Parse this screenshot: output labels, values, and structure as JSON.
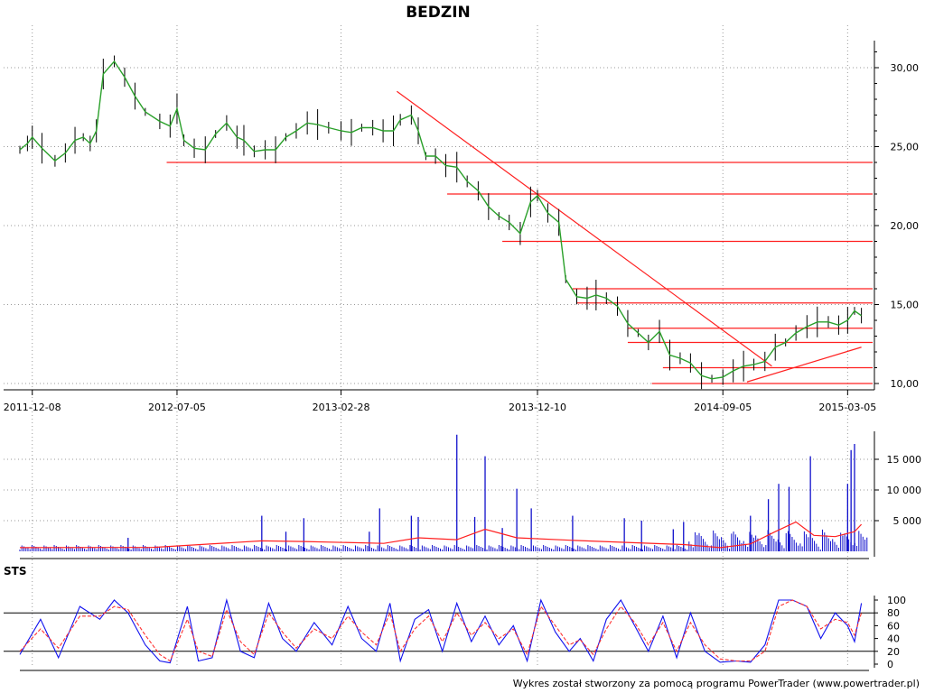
{
  "colors": {
    "background": "#ffffff",
    "price_line": "#2aa02a",
    "trend_line": "#ff2020",
    "support_line": "#ff2020",
    "volume_bar": "#1010cc",
    "volume_avg": "#ff2020",
    "sts_k": "#1010ee",
    "sts_d": "#ff3030",
    "axis": "#000000",
    "grid": "#9a9a9a"
  },
  "chart_data": [
    {
      "type": "line",
      "name": "price",
      "title": "BEDZIN",
      "x_tick_labels": [
        "2011-12-08",
        "2012-07-05",
        "2013-02-28",
        "2013-12-10",
        "2014-09-05",
        "2015-03-05"
      ],
      "y_tick_labels": [
        "10,00",
        "15,00",
        "20,00",
        "25,00",
        "30,00"
      ],
      "ylim": [
        10,
        32
      ],
      "xlim": [
        "2011-11-20",
        "2015-04-05"
      ],
      "grid": true,
      "series": [
        {
          "x": [
            "2011-11-20",
            "2011-12-01",
            "2011-12-08",
            "2011-12-22",
            "2012-01-10",
            "2012-01-25",
            "2012-02-08",
            "2012-02-20",
            "2012-03-01",
            "2012-03-10",
            "2012-03-20",
            "2012-04-05",
            "2012-04-20",
            "2012-05-05",
            "2012-05-20",
            "2012-06-10",
            "2012-06-25",
            "2012-07-05",
            "2012-07-15",
            "2012-07-30",
            "2012-08-15",
            "2012-08-30",
            "2012-09-15",
            "2012-09-30",
            "2012-10-10",
            "2012-10-25",
            "2012-11-10",
            "2012-11-25",
            "2012-12-10",
            "2012-12-25",
            "2013-01-10",
            "2013-01-25",
            "2013-02-10",
            "2013-02-28",
            "2013-03-15",
            "2013-03-30",
            "2013-04-15",
            "2013-04-30",
            "2013-05-15",
            "2013-05-25",
            "2013-06-10",
            "2013-06-20",
            "2013-07-01",
            "2013-07-15",
            "2013-07-30",
            "2013-08-15",
            "2013-08-30",
            "2013-09-15",
            "2013-09-30",
            "2013-10-15",
            "2013-10-30",
            "2013-11-15",
            "2013-11-30",
            "2013-12-10",
            "2013-12-25",
            "2014-01-10",
            "2014-01-20",
            "2014-02-05",
            "2014-02-20",
            "2014-03-05",
            "2014-03-20",
            "2014-04-05",
            "2014-04-20",
            "2014-05-05",
            "2014-05-20",
            "2014-06-05",
            "2014-06-20",
            "2014-07-05",
            "2014-07-20",
            "2014-08-05",
            "2014-08-20",
            "2014-09-05",
            "2014-09-20",
            "2014-10-05",
            "2014-10-20",
            "2014-11-05",
            "2014-11-20",
            "2014-12-05",
            "2014-12-20",
            "2015-01-05",
            "2015-01-20",
            "2015-02-05",
            "2015-02-20",
            "2015-03-05",
            "2015-03-15",
            "2015-03-25"
          ],
          "values": [
            24.8,
            25.2,
            25.6,
            24.9,
            24.1,
            24.6,
            25.4,
            25.6,
            25.2,
            26.0,
            29.6,
            30.4,
            29.4,
            28.2,
            27.2,
            26.6,
            26.3,
            27.4,
            25.4,
            24.9,
            24.8,
            25.8,
            26.5,
            25.6,
            25.4,
            24.7,
            24.8,
            24.8,
            25.6,
            26.0,
            26.5,
            26.4,
            26.2,
            26.0,
            25.9,
            26.2,
            26.2,
            26.0,
            26.0,
            26.7,
            27.0,
            26.0,
            24.4,
            24.4,
            23.8,
            23.7,
            22.8,
            22.2,
            21.2,
            20.6,
            20.2,
            19.5,
            21.5,
            21.9,
            20.8,
            20.2,
            16.6,
            15.5,
            15.4,
            15.6,
            15.4,
            14.9,
            13.8,
            13.2,
            12.6,
            13.3,
            11.8,
            11.6,
            11.3,
            10.5,
            10.3,
            10.4,
            10.8,
            11.1,
            11.2,
            11.4,
            12.3,
            12.6,
            13.2,
            13.6,
            13.9,
            13.9,
            13.7,
            14.0,
            14.6,
            14.3
          ]
        }
      ],
      "annotations": {
        "resistance_lines": [
          24.0,
          22.0,
          19.0,
          16.0,
          15.1,
          13.5,
          12.6,
          11.0,
          10.0
        ],
        "trend_down": [
          [
            "2013-05-20",
            28.5
          ],
          [
            "2014-11-15",
            11.1
          ]
        ],
        "trend_up": [
          [
            "2014-10-10",
            10.1
          ],
          [
            "2015-03-25",
            12.3
          ]
        ]
      }
    },
    {
      "type": "bar",
      "name": "volume",
      "y_tick_labels": [
        "5 000",
        "10 000",
        "15 000"
      ],
      "ylim": [
        0,
        19500
      ],
      "grid": true,
      "series": [
        {
          "name": "volume_spikes",
          "x": [
            "2012-04-25",
            "2012-11-05",
            "2012-12-10",
            "2013-01-05",
            "2013-04-10",
            "2013-04-25",
            "2013-06-10",
            "2013-06-20",
            "2013-08-15",
            "2013-09-10",
            "2013-09-25",
            "2013-10-20",
            "2013-11-10",
            "2013-12-01",
            "2014-01-30",
            "2014-04-15",
            "2014-05-10",
            "2014-06-25",
            "2014-07-10",
            "2014-10-15",
            "2014-11-10",
            "2014-11-25",
            "2014-12-10",
            "2015-01-10",
            "2015-03-05",
            "2015-03-10",
            "2015-03-15"
          ],
          "values": [
            2200,
            5800,
            3200,
            5400,
            3200,
            7000,
            5800,
            5600,
            19000,
            5600,
            15500,
            3800,
            10200,
            7000,
            5800,
            5400,
            5000,
            3600,
            4800,
            5800,
            8500,
            11000,
            10500,
            15500,
            11000,
            16500,
            17500
          ]
        },
        {
          "name": "volume_average",
          "x": [
            "2011-11-20",
            "2012-06-01",
            "2012-11-05",
            "2013-01-05",
            "2013-05-01",
            "2013-06-20",
            "2013-08-15",
            "2013-09-25",
            "2013-11-10",
            "2014-01-30",
            "2014-05-01",
            "2014-07-10",
            "2014-09-01",
            "2014-10-15",
            "2014-11-20",
            "2014-12-20",
            "2015-01-15",
            "2015-02-15",
            "2015-03-15",
            "2015-03-25"
          ],
          "values": [
            600,
            650,
            1700,
            1600,
            1300,
            2200,
            1900,
            3600,
            2200,
            1800,
            1400,
            1100,
            600,
            1200,
            3200,
            4800,
            2600,
            2400,
            3200,
            4400
          ]
        }
      ]
    },
    {
      "type": "line",
      "name": "STS",
      "y_tick_labels": [
        "0",
        "20",
        "40",
        "60",
        "80",
        "100"
      ],
      "ylim": [
        0,
        100
      ],
      "reference_lines": [
        20,
        80
      ],
      "series": [
        {
          "name": "K",
          "x": [
            "2011-11-20",
            "2011-12-20",
            "2012-01-15",
            "2012-02-15",
            "2012-03-15",
            "2012-04-05",
            "2012-04-25",
            "2012-05-20",
            "2012-06-10",
            "2012-06-25",
            "2012-07-20",
            "2012-08-05",
            "2012-08-25",
            "2012-09-15",
            "2012-10-05",
            "2012-10-25",
            "2012-11-15",
            "2012-12-05",
            "2012-12-25",
            "2013-01-20",
            "2013-02-15",
            "2013-03-10",
            "2013-03-30",
            "2013-04-20",
            "2013-05-10",
            "2013-05-25",
            "2013-06-15",
            "2013-07-05",
            "2013-07-25",
            "2013-08-15",
            "2013-09-05",
            "2013-09-25",
            "2013-10-15",
            "2013-11-05",
            "2013-11-25",
            "2013-12-15",
            "2014-01-05",
            "2014-01-25",
            "2014-02-10",
            "2014-03-01",
            "2014-03-20",
            "2014-04-10",
            "2014-04-30",
            "2014-05-20",
            "2014-06-10",
            "2014-06-30",
            "2014-07-20",
            "2014-08-10",
            "2014-09-01",
            "2014-09-25",
            "2014-10-15",
            "2014-11-05",
            "2014-11-25",
            "2014-12-15",
            "2015-01-05",
            "2015-01-25",
            "2015-02-15",
            "2015-03-05",
            "2015-03-15",
            "2015-03-25"
          ],
          "values": [
            15,
            70,
            10,
            90,
            70,
            100,
            80,
            30,
            5,
            2,
            90,
            5,
            10,
            100,
            20,
            10,
            95,
            40,
            20,
            65,
            30,
            90,
            40,
            20,
            95,
            5,
            70,
            85,
            20,
            95,
            35,
            75,
            30,
            60,
            5,
            100,
            50,
            20,
            40,
            5,
            70,
            100,
            60,
            20,
            75,
            10,
            80,
            20,
            3,
            5,
            3,
            30,
            100,
            100,
            90,
            40,
            80,
            60,
            35,
            95
          ]
        },
        {
          "name": "D",
          "x": [
            "2011-11-20",
            "2011-12-20",
            "2012-01-15",
            "2012-02-15",
            "2012-03-15",
            "2012-04-05",
            "2012-04-25",
            "2012-05-20",
            "2012-06-10",
            "2012-06-25",
            "2012-07-20",
            "2012-08-05",
            "2012-08-25",
            "2012-09-15",
            "2012-10-05",
            "2012-10-25",
            "2012-11-15",
            "2012-12-05",
            "2012-12-25",
            "2013-01-20",
            "2013-02-15",
            "2013-03-10",
            "2013-03-30",
            "2013-04-20",
            "2013-05-10",
            "2013-05-25",
            "2013-06-15",
            "2013-07-05",
            "2013-07-25",
            "2013-08-15",
            "2013-09-05",
            "2013-09-25",
            "2013-10-15",
            "2013-11-05",
            "2013-11-25",
            "2013-12-15",
            "2014-01-05",
            "2014-01-25",
            "2014-02-10",
            "2014-03-01",
            "2014-03-20",
            "2014-04-10",
            "2014-04-30",
            "2014-05-20",
            "2014-06-10",
            "2014-06-30",
            "2014-07-20",
            "2014-08-10",
            "2014-09-01",
            "2014-09-25",
            "2014-10-15",
            "2014-11-05",
            "2014-11-25",
            "2014-12-15",
            "2015-01-05",
            "2015-01-25",
            "2015-02-15",
            "2015-03-05",
            "2015-03-15",
            "2015-03-25"
          ],
          "values": [
            20,
            55,
            25,
            75,
            75,
            90,
            85,
            45,
            15,
            5,
            70,
            20,
            12,
            85,
            35,
            15,
            80,
            50,
            25,
            55,
            40,
            75,
            50,
            30,
            80,
            20,
            55,
            75,
            35,
            80,
            45,
            65,
            40,
            55,
            15,
            90,
            60,
            30,
            38,
            15,
            55,
            90,
            65,
            30,
            65,
            20,
            65,
            30,
            8,
            5,
            5,
            20,
            90,
            100,
            90,
            55,
            70,
            65,
            45,
            80
          ]
        }
      ]
    }
  ],
  "footer": {
    "credit": "Wykres został stworzony za pomocą programu PowerTrader (www.powertrader.pl)"
  }
}
